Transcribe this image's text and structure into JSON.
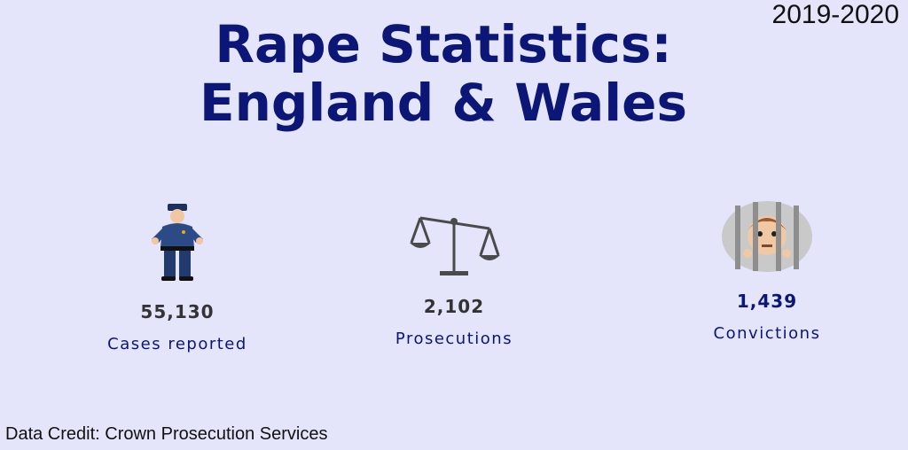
{
  "header": {
    "title_lines": [
      "Rape Statistics:",
      "England & Wales"
    ],
    "year": "2019-2020"
  },
  "stats": [
    {
      "value": "55,130",
      "label": "Cases reported"
    },
    {
      "value": "2,102",
      "label": "Prosecutions"
    },
    {
      "value": "1,439",
      "label": "Convictions"
    }
  ],
  "footer": {
    "credit": "Data Credit: Crown Prosecution Services"
  }
}
